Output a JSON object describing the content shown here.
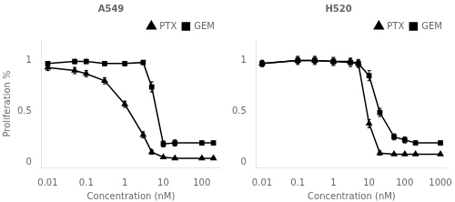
{
  "chart_data": [
    {
      "type": "line",
      "title": "A549",
      "xlabel": "Concentration (nM)",
      "ylabel": "Proliferation %",
      "x": [
        0.01,
        0.05,
        0.1,
        0.3,
        1,
        3,
        5,
        10,
        20,
        100,
        200
      ],
      "series": [
        {
          "name": "PTX",
          "color": "#000000",
          "marker": "triangle",
          "values": [
            0.93,
            0.9,
            0.87,
            0.8,
            0.57,
            0.27,
            0.1,
            0.05,
            0.04,
            0.04,
            0.04
          ],
          "yerr": [
            0.03,
            0.03,
            0.03,
            0.03,
            0.03,
            0.03,
            0.02,
            0.01,
            0.01,
            0.01,
            0.01
          ]
        },
        {
          "name": "GEM",
          "color": "#000000",
          "marker": "square",
          "values": [
            0.97,
            0.99,
            0.99,
            0.97,
            0.97,
            0.98,
            0.74,
            0.18,
            0.19,
            0.19,
            0.19
          ],
          "yerr": [
            0.02,
            0.02,
            0.02,
            0.02,
            0.02,
            0.02,
            0.05,
            0.03,
            0.03,
            0.02,
            0.02
          ]
        }
      ],
      "xlim": [
        0.007,
        300
      ],
      "xticks": [
        0.01,
        0.1,
        1,
        10,
        100
      ],
      "ylim": [
        -0.05,
        1.2
      ],
      "yticks": [
        0,
        0.5,
        1
      ],
      "log": "x",
      "grid": false,
      "legend": "upper right"
    },
    {
      "type": "line",
      "title": "H520",
      "xlabel": "Concentration (nM)",
      "x": [
        0.01,
        0.1,
        0.3,
        1,
        3,
        5,
        10,
        20,
        50,
        100,
        200,
        1000
      ],
      "series": [
        {
          "name": "PTX",
          "color": "#000000",
          "marker": "triangle",
          "values": [
            0.97,
            1.0,
            1.0,
            0.99,
            0.99,
            0.97,
            0.38,
            0.09,
            0.08,
            0.08,
            0.08,
            0.08
          ],
          "yerr": [
            0.03,
            0.03,
            0.03,
            0.03,
            0.03,
            0.03,
            0.04,
            0.02,
            0.01,
            0.01,
            0.01,
            0.01
          ]
        },
        {
          "name": "GEM",
          "color": "#000000",
          "marker": "square",
          "values": [
            0.97,
            1.0,
            1.0,
            0.99,
            0.98,
            0.97,
            0.85,
            0.49,
            0.25,
            0.22,
            0.19,
            0.19
          ],
          "yerr": [
            0.03,
            0.04,
            0.04,
            0.04,
            0.04,
            0.04,
            0.05,
            0.04,
            0.03,
            0.03,
            0.02,
            0.02
          ]
        }
      ],
      "xlim": [
        0.007,
        1500
      ],
      "xticks": [
        0.01,
        0.1,
        1,
        10,
        100,
        1000
      ],
      "ylim": [
        -0.05,
        1.2
      ],
      "yticks": [
        0,
        0.5,
        1
      ],
      "log": "x",
      "grid": false,
      "legend": "upper right"
    }
  ]
}
